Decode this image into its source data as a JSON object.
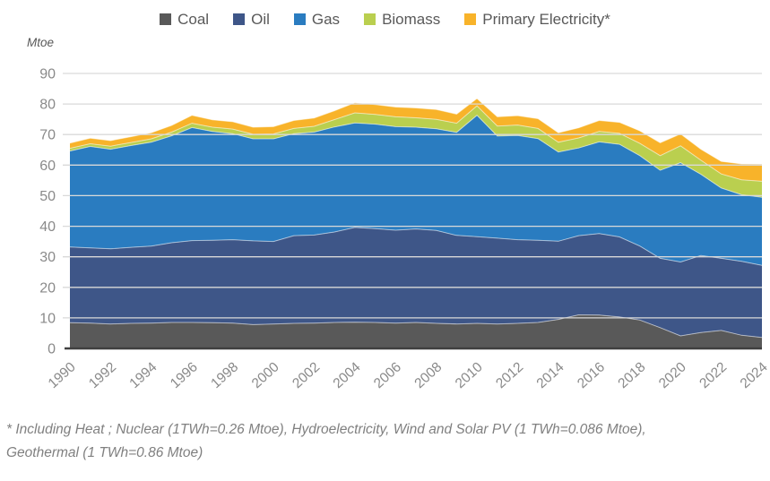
{
  "chart_data": {
    "type": "area",
    "stacked": true,
    "title": "",
    "ylabel": "Mtoe",
    "xlabel": "",
    "x": [
      1990,
      1991,
      1992,
      1993,
      1994,
      1995,
      1996,
      1997,
      1998,
      1999,
      2000,
      2001,
      2002,
      2003,
      2004,
      2005,
      2006,
      2007,
      2008,
      2009,
      2010,
      2011,
      2012,
      2013,
      2014,
      2015,
      2016,
      2017,
      2018,
      2019,
      2020,
      2021,
      2022,
      2023,
      2024
    ],
    "x_tick_interval": 2,
    "x_tick_labels": [
      "1990",
      "1992",
      "1994",
      "1996",
      "1998",
      "2000",
      "2002",
      "2004",
      "2006",
      "2008",
      "2010",
      "2012",
      "2014",
      "2016",
      "2018",
      "2020",
      "2022",
      "2024"
    ],
    "ylim": [
      0,
      90
    ],
    "y_tick_interval": 10,
    "y_tick_labels": [
      "0",
      "10",
      "20",
      "30",
      "40",
      "50",
      "60",
      "70",
      "80",
      "90"
    ],
    "grid": true,
    "legend_position": "top",
    "series": [
      {
        "name": "Coal",
        "color": "#595959",
        "values": [
          8.4,
          8.3,
          8.0,
          8.2,
          8.3,
          8.5,
          8.5,
          8.4,
          8.3,
          7.8,
          8.0,
          8.2,
          8.3,
          8.5,
          8.6,
          8.5,
          8.3,
          8.5,
          8.2,
          8.0,
          8.2,
          8.0,
          8.2,
          8.5,
          9.5,
          11.0,
          10.9,
          10.3,
          9.3,
          6.8,
          4.1,
          5.2,
          5.9,
          4.3,
          3.6
        ]
      },
      {
        "name": "Oil",
        "color": "#3E5688",
        "values": [
          24.8,
          24.6,
          24.6,
          24.9,
          25.2,
          26.1,
          26.8,
          27.0,
          27.3,
          27.4,
          27.0,
          28.7,
          28.8,
          29.6,
          31.0,
          30.7,
          30.4,
          30.6,
          30.4,
          29.0,
          28.4,
          28.1,
          27.4,
          26.9,
          25.6,
          25.9,
          26.7,
          26.2,
          24.2,
          22.7,
          24.2,
          25.2,
          23.6,
          24.2,
          23.6
        ]
      },
      {
        "name": "Gas",
        "color": "#2A7CC0",
        "values": [
          31.4,
          33.2,
          32.6,
          33.3,
          34.0,
          35.0,
          37.0,
          35.6,
          34.7,
          33.4,
          33.6,
          33.4,
          33.7,
          34.4,
          34.2,
          34.2,
          33.9,
          33.3,
          33.3,
          33.7,
          39.7,
          33.4,
          34.1,
          33.3,
          29.2,
          28.7,
          30.0,
          30.3,
          29.6,
          28.8,
          32.5,
          26.6,
          23.0,
          21.8,
          22.3
        ]
      },
      {
        "name": "Biomass",
        "color": "#BACF4F",
        "values": [
          0.9,
          0.9,
          1.0,
          1.0,
          1.1,
          1.2,
          1.4,
          1.4,
          1.5,
          1.5,
          1.6,
          1.7,
          1.9,
          2.4,
          3.3,
          3.2,
          3.2,
          3.1,
          3.1,
          3.0,
          3.1,
          3.3,
          3.4,
          3.3,
          3.2,
          3.3,
          3.4,
          3.6,
          4.0,
          4.8,
          5.5,
          4.6,
          4.6,
          4.9,
          5.2
        ]
      },
      {
        "name": "Primary Electricity*",
        "color": "#F8B32A",
        "values": [
          1.7,
          1.8,
          1.8,
          1.9,
          2.0,
          2.2,
          2.6,
          2.4,
          2.4,
          2.3,
          2.4,
          2.6,
          2.7,
          2.9,
          3.3,
          3.2,
          3.2,
          3.2,
          3.2,
          3.0,
          2.4,
          3.0,
          3.1,
          3.2,
          3.1,
          3.3,
          3.6,
          3.6,
          4.1,
          4.2,
          3.9,
          3.6,
          4.1,
          5.2,
          5.6
        ]
      }
    ],
    "footnote_line1": "* Including Heat ; Nuclear (1TWh=0.26 Mtoe), Hydroelectricity, Wind and Solar PV (1 TWh=0.086 Mtoe),",
    "footnote_line2": "Geothermal (1 TWh=0.86 Mtoe)",
    "style": {
      "gridline_color": "#D9D9D9",
      "axis_line_color": "#404040",
      "tick_label_color": "#8a8a8a",
      "legend_text_color": "#595959",
      "band_separator_color": "rgba(255,255,255,0.55)"
    }
  }
}
